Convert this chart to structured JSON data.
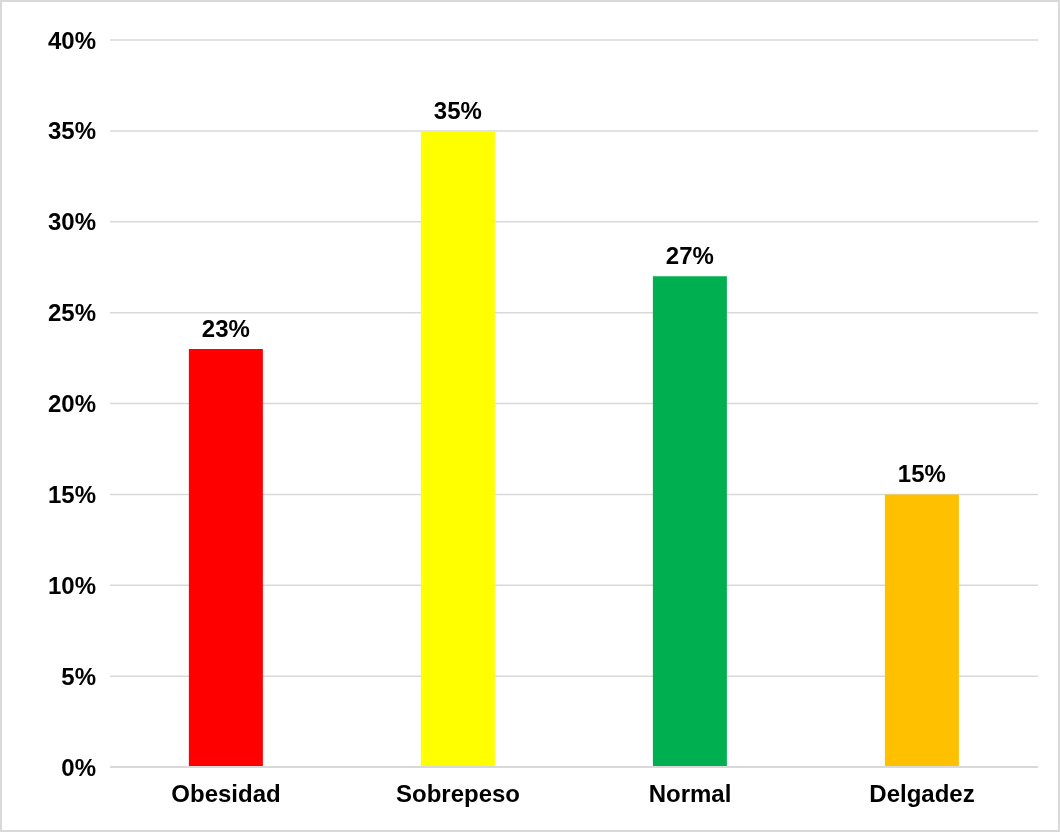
{
  "chart_data": {
    "type": "bar",
    "categories": [
      "Obesidad",
      "Sobrepeso",
      "Normal",
      "Delgadez"
    ],
    "values": [
      23,
      35,
      27,
      15
    ],
    "colors": [
      "#ff0000",
      "#ffff00",
      "#00b050",
      "#ffc000"
    ],
    "value_labels": [
      "23%",
      "35%",
      "27%",
      "15%"
    ],
    "ylim": [
      0,
      40
    ],
    "yticks": [
      {
        "value": 0,
        "label": "0%"
      },
      {
        "value": 5,
        "label": "5%"
      },
      {
        "value": 10,
        "label": "10%"
      },
      {
        "value": 15,
        "label": "15%"
      },
      {
        "value": 20,
        "label": "20%"
      },
      {
        "value": 25,
        "label": "25%"
      },
      {
        "value": 30,
        "label": "30%"
      },
      {
        "value": 35,
        "label": "35%"
      },
      {
        "value": 40,
        "label": "40%"
      }
    ],
    "grid": "y",
    "legend": false
  }
}
